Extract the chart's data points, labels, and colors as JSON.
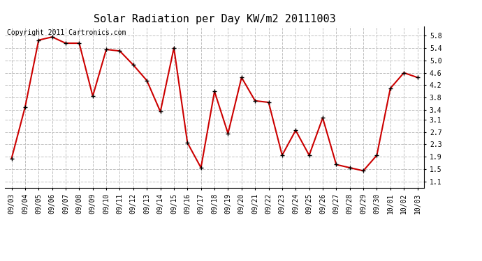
{
  "title": "Solar Radiation per Day KW/m2 20111003",
  "copyright_text": "Copyright 2011 Cartronics.com",
  "dates": [
    "09/03",
    "09/04",
    "09/05",
    "09/06",
    "09/07",
    "09/08",
    "09/09",
    "09/10",
    "09/11",
    "09/12",
    "09/13",
    "09/14",
    "09/15",
    "09/16",
    "09/17",
    "09/18",
    "09/19",
    "09/20",
    "09/21",
    "09/22",
    "09/23",
    "09/24",
    "09/25",
    "09/26",
    "09/27",
    "09/28",
    "09/29",
    "09/30",
    "10/01",
    "10/02",
    "10/03"
  ],
  "values": [
    1.85,
    3.5,
    5.65,
    5.75,
    5.55,
    5.55,
    3.85,
    5.35,
    5.3,
    4.85,
    4.35,
    3.35,
    5.4,
    2.35,
    1.55,
    4.0,
    2.65,
    4.45,
    3.7,
    3.65,
    1.95,
    2.75,
    1.95,
    3.15,
    1.65,
    1.55,
    1.45,
    1.95,
    4.1,
    4.6,
    4.45
  ],
  "line_color": "#cc0000",
  "marker": "+",
  "marker_color": "#000000",
  "background_color": "#ffffff",
  "grid_color": "#c0c0c0",
  "ylim": [
    0.9,
    6.1
  ],
  "yticks": [
    1.1,
    1.5,
    1.9,
    2.3,
    2.7,
    3.1,
    3.4,
    3.8,
    4.2,
    4.6,
    5.0,
    5.4,
    5.8
  ],
  "title_fontsize": 11,
  "copyright_fontsize": 7,
  "tick_fontsize": 7,
  "line_width": 1.5
}
